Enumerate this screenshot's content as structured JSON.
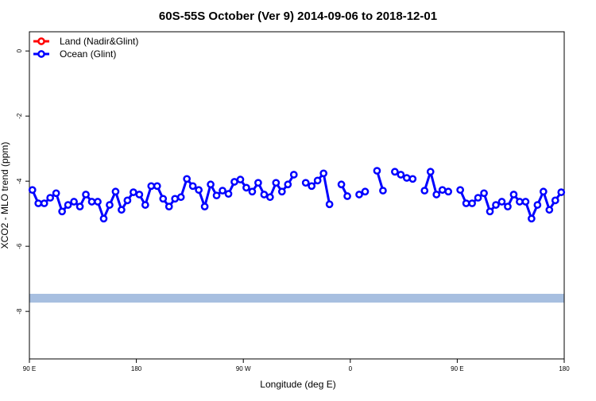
{
  "chart_data": {
    "type": "line",
    "title": "60S-55S October (Ver 9)   2014-09-06 to 2018-12-01",
    "x_label": "Longitude (deg E)",
    "y_label": "XCO2 - MLO trend (ppm)",
    "x": [
      92.5,
      97.5,
      102.5,
      107.5,
      112.5,
      117.5,
      122.5,
      127.5,
      132.5,
      137.5,
      142.5,
      147.5,
      152.5,
      157.5,
      162.5,
      167.5,
      172.5,
      177.5,
      182.5,
      187.5,
      192.5,
      197.5,
      202.5,
      207.5,
      212.5,
      217.5,
      222.5,
      227.5,
      232.5,
      237.5,
      242.5,
      247.5,
      252.5,
      257.5,
      262.5,
      267.5,
      272.5,
      277.5,
      282.5,
      287.5,
      292.5,
      297.5,
      302.5,
      307.5,
      312.5,
      317.5,
      322.5,
      327.5,
      332.5,
      337.5,
      342.5,
      347.5,
      352.5,
      357.5,
      362.5,
      367.5,
      372.5,
      377.5,
      382.5,
      387.5,
      392.5,
      397.5,
      402.5,
      407.5,
      412.5,
      417.5,
      422.5,
      427.5,
      432.5,
      437.5,
      442.5,
      447.5,
      452.5,
      457.5,
      462.5,
      467.5,
      472.5,
      477.5,
      482.5,
      487.5,
      492.5,
      497.5,
      502.5,
      507.5,
      512.5,
      517.5,
      522.5,
      527.5,
      532.5,
      537.5
    ],
    "series": [
      {
        "name": "Land (Nadir&Glint)",
        "color": "#ff0000",
        "values": [
          null,
          null,
          null,
          null,
          null,
          null,
          null,
          null,
          null,
          null,
          null,
          null,
          null,
          null,
          null,
          null,
          null,
          null,
          null,
          null,
          null,
          null,
          null,
          null,
          null,
          null,
          null,
          null,
          null,
          null,
          null,
          null,
          null,
          null,
          null,
          null,
          null,
          null,
          null,
          null,
          null,
          null,
          null,
          null,
          null,
          null,
          null,
          null,
          null,
          null,
          null,
          null,
          null,
          null,
          null,
          null,
          null,
          null,
          null,
          null,
          null,
          null,
          null,
          null,
          null,
          null,
          null,
          null,
          null,
          null,
          null,
          null,
          null,
          null,
          null,
          null,
          null,
          null,
          null,
          null,
          null,
          null,
          null,
          null,
          null,
          null,
          null,
          null,
          null,
          null
        ]
      },
      {
        "name": "Ocean (Glint)",
        "color": "#0000ff",
        "values": [
          -4.27,
          -4.68,
          -4.68,
          -4.51,
          -4.37,
          -4.93,
          -4.73,
          -4.63,
          -4.78,
          -4.41,
          -4.63,
          -4.63,
          -5.15,
          -4.73,
          -4.32,
          -4.88,
          -4.59,
          -4.34,
          -4.41,
          -4.73,
          -4.15,
          -4.15,
          -4.54,
          -4.78,
          -4.54,
          -4.49,
          -3.93,
          -4.15,
          -4.27,
          -4.78,
          -4.1,
          -4.44,
          -4.29,
          -4.39,
          -4.02,
          -3.95,
          -4.2,
          -4.32,
          -4.05,
          -4.41,
          -4.49,
          -4.05,
          -4.32,
          -4.1,
          -3.8,
          null,
          -4.05,
          -4.15,
          -3.98,
          -3.76,
          -4.71,
          null,
          -4.1,
          -4.46,
          null,
          -4.41,
          -4.32,
          null,
          -3.68,
          -4.29,
          null,
          -3.71,
          -3.8,
          -3.9,
          -3.93,
          null,
          -4.29,
          -3.71,
          -4.41,
          -4.27,
          -4.32,
          null,
          -4.27,
          -4.68,
          -4.68,
          -4.51,
          -4.37,
          -4.93,
          -4.73,
          -4.63,
          -4.78,
          -4.41,
          -4.63,
          -4.63,
          -5.15,
          -4.73,
          -4.32,
          -4.88,
          -4.59,
          -4.34
        ]
      }
    ],
    "band": {
      "ylim": [
        -7.73,
        -7.46
      ],
      "color": "#a7bfe0"
    },
    "xlim": [
      90,
      540
    ],
    "xticks": [
      {
        "value": 90,
        "label": "90 E"
      },
      180,
      {
        "value": 270,
        "label": "90 W"
      },
      {
        "value": 360,
        "label": "0"
      },
      {
        "value": 450,
        "label": "90 E"
      },
      {
        "value": 540,
        "label": "180"
      }
    ],
    "ylim": [
      -9.46,
      0.59
    ],
    "yticks": [
      0,
      -2,
      -4,
      -6,
      -8
    ],
    "legend": "top-left"
  }
}
